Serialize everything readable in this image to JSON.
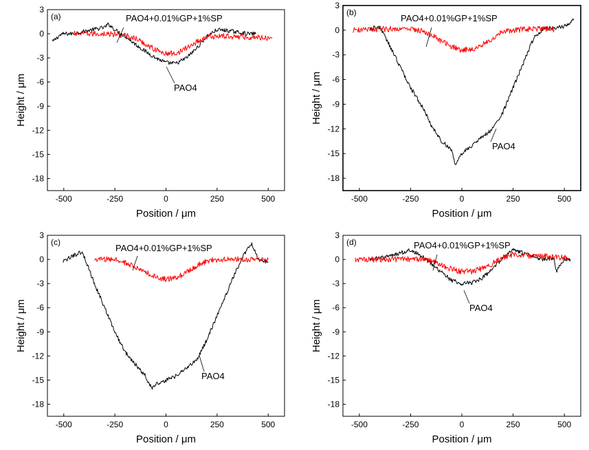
{
  "chart_data": [
    {
      "type": "line",
      "panel_label": "(a)",
      "xlabel": "Position / μm",
      "ylabel": "Height / μm",
      "xlim": [
        -580,
        580
      ],
      "ylim": [
        -19.5,
        3
      ],
      "xticks": [
        "-500",
        "-250",
        "0",
        "250",
        "500"
      ],
      "yticks": [
        "3",
        "0",
        "-3",
        "-6",
        "-9",
        "-12",
        "-15",
        "-18"
      ],
      "annotations": [
        "PAO4+0.01%GP+1%SP",
        "PAO4"
      ],
      "series": [
        {
          "name": "PAO4",
          "color": "#000000",
          "x": [
            -555,
            -520,
            -500,
            -460,
            -400,
            -300,
            -280,
            -250,
            -200,
            -150,
            -100,
            -50,
            0,
            50,
            100,
            150,
            200,
            250,
            300,
            350,
            400,
            440
          ],
          "y": [
            -1.0,
            -0.2,
            0.0,
            0.0,
            0.3,
            0.8,
            1.2,
            0.5,
            -0.3,
            -1.3,
            -2.2,
            -3.0,
            -3.6,
            -3.7,
            -3.0,
            -1.8,
            -0.3,
            0.5,
            0.4,
            0.2,
            0.0,
            0.0
          ]
        },
        {
          "name": "PAO4+0.01%GP+1%SP",
          "color": "#ff0000",
          "x": [
            -450,
            -300,
            -200,
            -150,
            -100,
            -50,
            0,
            50,
            100,
            150,
            200,
            250,
            300,
            400,
            520
          ],
          "y": [
            0.0,
            0.0,
            -0.2,
            -0.6,
            -1.3,
            -2.0,
            -2.5,
            -2.4,
            -1.8,
            -1.0,
            -0.4,
            -0.3,
            -0.3,
            -0.4,
            -0.5
          ]
        }
      ]
    },
    {
      "type": "line",
      "panel_label": "(b)",
      "xlabel": "Position / μm",
      "ylabel": "Height / μm",
      "xlim": [
        -580,
        580
      ],
      "ylim": [
        -19.5,
        3
      ],
      "xticks": [
        "-500",
        "-250",
        "0",
        "250",
        "500"
      ],
      "yticks": [
        "3",
        "0",
        "-3",
        "-6",
        "-9",
        "-12",
        "-15",
        "-18"
      ],
      "annotations": [
        "PAO4+0.01%GP+1%SP",
        "PAO4"
      ],
      "series": [
        {
          "name": "PAO4",
          "color": "#000000",
          "x": [
            -450,
            -400,
            -350,
            -300,
            -250,
            -200,
            -150,
            -100,
            -50,
            -30,
            0,
            50,
            100,
            150,
            200,
            250,
            300,
            350,
            400,
            450,
            500,
            545
          ],
          "y": [
            0.2,
            0.4,
            -2.0,
            -4.5,
            -7.0,
            -9.0,
            -11.5,
            -13.5,
            -14.5,
            -16.5,
            -15.0,
            -14.0,
            -13.0,
            -12.0,
            -10.0,
            -7.0,
            -4.0,
            -1.0,
            0.3,
            0.2,
            0.5,
            1.2
          ]
        },
        {
          "name": "PAO4+0.01%GP+1%SP",
          "color": "#ff0000",
          "x": [
            -530,
            -400,
            -300,
            -200,
            -150,
            -100,
            -50,
            0,
            50,
            100,
            150,
            200,
            300,
            400,
            450
          ],
          "y": [
            0.0,
            0.1,
            0.2,
            0.0,
            -0.6,
            -1.3,
            -2.0,
            -2.4,
            -2.3,
            -1.8,
            -1.0,
            -0.2,
            0.1,
            0.2,
            0.1
          ]
        }
      ]
    },
    {
      "type": "line",
      "panel_label": "(c)",
      "xlabel": "Position / μm",
      "ylabel": "Height / μm",
      "xlim": [
        -580,
        580
      ],
      "ylim": [
        -19.5,
        3
      ],
      "xticks": [
        "-500",
        "-250",
        "0",
        "250",
        "500"
      ],
      "yticks": [
        "3",
        "0",
        "-3",
        "-6",
        "-9",
        "-12",
        "-15",
        "-18"
      ],
      "annotations": [
        "PAO4+0.01%GP+1%SP",
        "PAO4"
      ],
      "series": [
        {
          "name": "PAO4",
          "color": "#000000",
          "x": [
            -505,
            -450,
            -410,
            -350,
            -300,
            -250,
            -200,
            -150,
            -100,
            -70,
            -50,
            0,
            50,
            100,
            150,
            200,
            250,
            300,
            350,
            400,
            420,
            450,
            500
          ],
          "y": [
            -0.3,
            0.5,
            1.0,
            -3.0,
            -6.0,
            -9.0,
            -11.5,
            -13.0,
            -14.5,
            -16.0,
            -15.5,
            -15.0,
            -14.5,
            -13.5,
            -12.5,
            -10.0,
            -7.0,
            -4.0,
            -1.0,
            1.5,
            2.0,
            0.0,
            -0.3
          ]
        },
        {
          "name": "PAO4+0.01%GP+1%SP",
          "color": "#ff0000",
          "x": [
            -350,
            -250,
            -200,
            -150,
            -100,
            -50,
            0,
            50,
            100,
            150,
            200,
            250,
            300,
            400,
            500
          ],
          "y": [
            0.0,
            0.0,
            -0.4,
            -1.0,
            -1.6,
            -2.2,
            -2.5,
            -2.3,
            -1.6,
            -0.8,
            -0.2,
            0.0,
            0.0,
            0.0,
            0.0
          ]
        }
      ]
    },
    {
      "type": "line",
      "panel_label": "(d)",
      "xlabel": "Position / μm",
      "ylabel": "Height / μm",
      "xlim": [
        -580,
        580
      ],
      "ylim": [
        -19.5,
        3
      ],
      "xticks": [
        "-500",
        "-250",
        "0",
        "250",
        "500"
      ],
      "yticks": [
        "3",
        "0",
        "-3",
        "-6",
        "-9",
        "-12",
        "-15",
        "-18"
      ],
      "annotations": [
        "PAO4+0.01%GP+1%SP",
        "PAO4"
      ],
      "series": [
        {
          "name": "PAO4",
          "color": "#000000",
          "x": [
            -450,
            -350,
            -300,
            -250,
            -200,
            -150,
            -100,
            -50,
            0,
            50,
            100,
            150,
            200,
            250,
            300,
            350,
            400,
            450,
            460,
            500,
            530
          ],
          "y": [
            0.0,
            0.4,
            0.8,
            1.2,
            0.5,
            -0.5,
            -1.6,
            -2.6,
            -3.0,
            -2.9,
            -2.3,
            -1.2,
            0.2,
            1.2,
            0.8,
            0.3,
            0.0,
            0.2,
            -1.5,
            0.0,
            0.0
          ]
        },
        {
          "name": "PAO4+0.01%GP+1%SP",
          "color": "#ff0000",
          "x": [
            -520,
            -400,
            -300,
            -200,
            -150,
            -100,
            -50,
            0,
            50,
            100,
            150,
            200,
            250,
            300,
            400,
            520
          ],
          "y": [
            0.0,
            0.0,
            0.0,
            0.1,
            -0.2,
            -0.7,
            -1.2,
            -1.5,
            -1.5,
            -1.1,
            -0.5,
            0.2,
            0.6,
            0.5,
            0.4,
            0.2
          ]
        }
      ]
    }
  ]
}
